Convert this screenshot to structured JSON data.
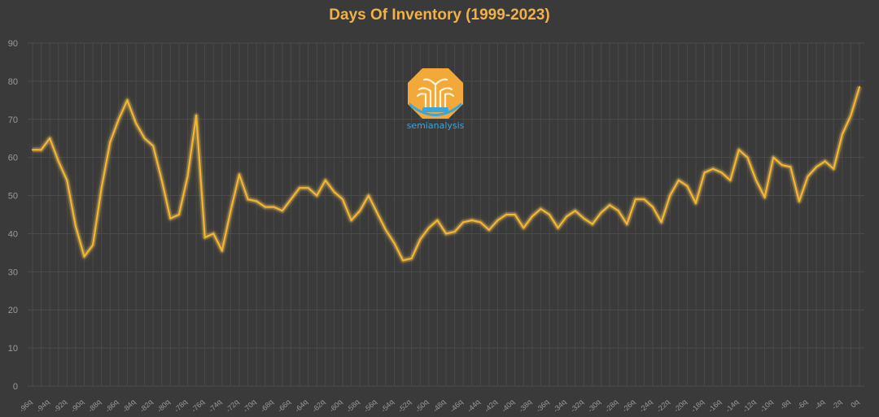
{
  "chart_data": {
    "type": "line",
    "title": "Days Of Inventory (1999-2023)",
    "xlabel": "",
    "ylabel": "",
    "ylim": [
      0,
      90
    ],
    "yticks": [
      0,
      10,
      20,
      30,
      40,
      50,
      60,
      70,
      80,
      90
    ],
    "grid": true,
    "legend": "none",
    "colors": {
      "line": "#f5b52e",
      "glow": "#f7c95a",
      "title": "#f0b14a",
      "background": "#3a3a3a",
      "grid": "#4a4a4a",
      "tick_label": "#9a9a9a"
    },
    "categories": [
      "-96q",
      "-95q",
      "-94q",
      "-93q",
      "-92q",
      "-91q",
      "-90q",
      "-89q",
      "-88q",
      "-87q",
      "-86q",
      "-85q",
      "-84q",
      "-83q",
      "-82q",
      "-81q",
      "-80q",
      "-79q",
      "-78q",
      "-77q",
      "-76q",
      "-75q",
      "-74q",
      "-73q",
      "-72q",
      "-71q",
      "-70q",
      "-69q",
      "-68q",
      "-67q",
      "-66q",
      "-65q",
      "-64q",
      "-63q",
      "-62q",
      "-61q",
      "-60q",
      "-59q",
      "-58q",
      "-57q",
      "-56q",
      "-55q",
      "-54q",
      "-53q",
      "-52q",
      "-51q",
      "-50q",
      "-49q",
      "-48q",
      "-47q",
      "-46q",
      "-45q",
      "-44q",
      "-43q",
      "-42q",
      "-41q",
      "-40q",
      "-39q",
      "-38q",
      "-37q",
      "-36q",
      "-35q",
      "-34q",
      "-33q",
      "-32q",
      "-31q",
      "-30q",
      "-29q",
      "-28q",
      "-27q",
      "-26q",
      "-25q",
      "-24q",
      "-23q",
      "-22q",
      "-21q",
      "-20q",
      "-19q",
      "-18q",
      "-17q",
      "-16q",
      "-15q",
      "-14q",
      "-13q",
      "-12q",
      "-11q",
      "-10q",
      "-9q",
      "-8q",
      "-7q",
      "-6q",
      "-5q",
      "-4q",
      "-3q",
      "-2q",
      "-1q",
      "0q"
    ],
    "tick_labels": [
      "-96q",
      "-94q",
      "-92q",
      "-90q",
      "-88q",
      "-86q",
      "-84q",
      "-82q",
      "-80q",
      "-78q",
      "-76q",
      "-74q",
      "-72q",
      "-70q",
      "-68q",
      "-66q",
      "-64q",
      "-62q",
      "-60q",
      "-58q",
      "-56q",
      "-54q",
      "-52q",
      "-50q",
      "-48q",
      "-46q",
      "-44q",
      "-42q",
      "-40q",
      "-38q",
      "-36q",
      "-34q",
      "-32q",
      "-30q",
      "-28q",
      "-26q",
      "-24q",
      "-22q",
      "-20q",
      "-18q",
      "-16q",
      "-14q",
      "-12q",
      "-10q",
      "-8q",
      "-6q",
      "-4q",
      "-2q",
      "0q"
    ],
    "series": [
      {
        "values": [
          62,
          62,
          65,
          59,
          54,
          42,
          34,
          37,
          52,
          64,
          70,
          75,
          69,
          65,
          63,
          54,
          44,
          45,
          55,
          71,
          39,
          40,
          35.5,
          46,
          55.5,
          49,
          48.5,
          47,
          47,
          46,
          49,
          52,
          52,
          50,
          54,
          51,
          49,
          43.5,
          46,
          50,
          45.5,
          41,
          37.5,
          33,
          33.5,
          38.5,
          41.5,
          43.5,
          40,
          40.5,
          43,
          43.5,
          43,
          41,
          43.5,
          45,
          45,
          41.5,
          44.5,
          46.5,
          45,
          41.5,
          44.5,
          46,
          44,
          42.5,
          45.5,
          47.5,
          46,
          42.5,
          49,
          49,
          47,
          43,
          50,
          54,
          52.5,
          48,
          56,
          57,
          56,
          54,
          62,
          60,
          54,
          49.5,
          60,
          58,
          57.5,
          48.5,
          55,
          57.5,
          59,
          57,
          66,
          71,
          78.5
        ]
      }
    ]
  },
  "watermark": {
    "text": "semianalysis",
    "icon": "tree-logo-icon"
  }
}
